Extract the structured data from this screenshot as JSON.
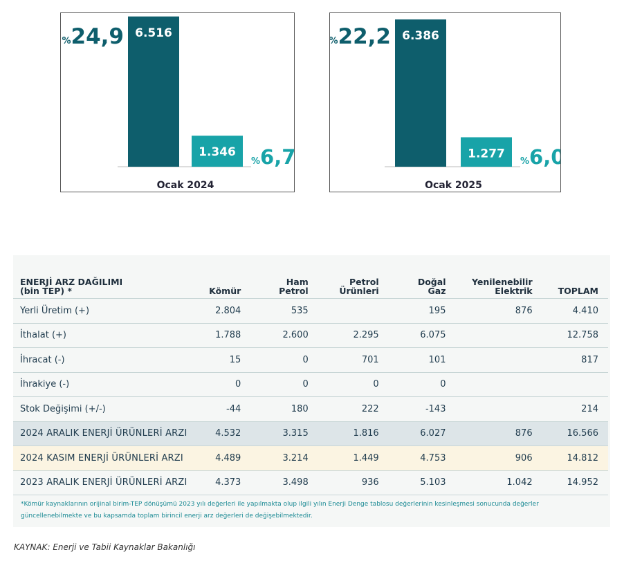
{
  "chart_data": [
    {
      "type": "bar",
      "title": "",
      "categories": [
        "Ocak 2024"
      ],
      "series": [
        {
          "values": [
            6516
          ],
          "value_label": "6.516",
          "share_label": "%24,9",
          "color": "#0e5e6c"
        },
        {
          "values": [
            1346
          ],
          "value_label": "1.346",
          "share_label": "%6,7",
          "color": "#18a3a8"
        }
      ],
      "xlabel": "",
      "ylabel": "",
      "ylim": [
        0,
        6600
      ],
      "grid": false,
      "legend": "none"
    },
    {
      "type": "bar",
      "title": "",
      "categories": [
        "Ocak 2025"
      ],
      "series": [
        {
          "values": [
            6386
          ],
          "value_label": "6.386",
          "share_label": "%22,2",
          "color": "#0e5e6c"
        },
        {
          "values": [
            1277
          ],
          "value_label": "1.277",
          "share_label": "%6,0",
          "color": "#18a3a8"
        }
      ],
      "xlabel": "",
      "ylabel": "",
      "ylim": [
        0,
        6600
      ],
      "grid": false,
      "legend": "none"
    }
  ],
  "table": {
    "header": {
      "title_line1": "ENERJİ ARZ DAĞILIMI",
      "title_line2": "(bin TEP) *",
      "columns": [
        [
          "Kömür"
        ],
        [
          "Ham",
          "Petrol"
        ],
        [
          "Petrol",
          "Ürünleri"
        ],
        [
          "Doğal",
          "Gaz"
        ],
        [
          "Yenilenebilir",
          "Elektrik"
        ],
        [
          "TOPLAM"
        ]
      ]
    },
    "rows": [
      {
        "label": "Yerli Üretim (+)",
        "values": [
          "2.804",
          "535",
          "",
          "195",
          "876",
          "4.410"
        ],
        "bg": "#f5f7f6"
      },
      {
        "label": "İthalat (+)",
        "values": [
          "1.788",
          "2.600",
          "2.295",
          "6.075",
          "",
          "12.758"
        ],
        "bg": "#f5f7f6"
      },
      {
        "label": "İhracat (-)",
        "values": [
          "15",
          "0",
          "701",
          "101",
          "",
          "817"
        ],
        "bg": "#f5f7f6"
      },
      {
        "label": "İhrakiye (-)",
        "values": [
          "0",
          "0",
          "0",
          "0",
          "",
          ""
        ],
        "bg": "#f5f7f6"
      },
      {
        "label": "Stok Değişimi (+/-)",
        "values": [
          "-44",
          "180",
          "222",
          "-143",
          "",
          "214"
        ],
        "bg": "#f5f7f6"
      },
      {
        "label": "2024 ARALIK ENERJİ ÜRÜNLERİ ARZI",
        "values": [
          "4.532",
          "3.315",
          "1.816",
          "6.027",
          "876",
          "16.566"
        ],
        "bg": "#dde5e8"
      },
      {
        "label": "2024 KASIM ENERJİ ÜRÜNLERİ ARZI",
        "values": [
          "4.489",
          "3.214",
          "1.449",
          "4.753",
          "906",
          "14.812"
        ],
        "bg": "#fbf4e2"
      },
      {
        "label": "2023 ARALIK ENERJİ ÜRÜNLERİ ARZI",
        "values": [
          "4.373",
          "3.498",
          "936",
          "5.103",
          "1.042",
          "14.952"
        ],
        "bg": "#f5f7f6"
      }
    ],
    "footnote": "*Kömür kaynaklarının orijinal birim-TEP dönüşümü 2023 yılı değerleri ile yapılmakta olup ilgili yılın Enerji Denge tablosu değerlerinin kesinleşmesi sonucunda değerler güncellenebilmekte ve bu kapsamda toplam birincil enerji arz değerleri de değişebilmektedir."
  },
  "source": "KAYNAK: Enerji ve Tabii Kaynaklar Bakanlığı"
}
